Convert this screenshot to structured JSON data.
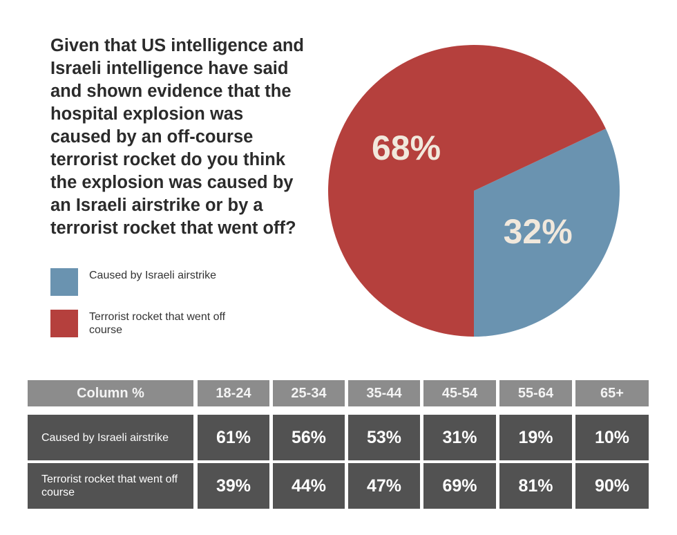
{
  "question": "Given that US intelligence and Israeli intelligence have said and shown evidence that the hospital explosion was caused by an off-course terrorist rocket do you think the explosion was caused by an Israeli airstrike or by a terrorist rocket that went off?",
  "colors": {
    "airstrike": "#6a93b0",
    "rocket": "#b5403d",
    "header_bg": "#8c8c8c",
    "cell_bg": "#525252",
    "pie_label": "#f1e8dc"
  },
  "legend": [
    {
      "label": "Caused by Israeli airstrike",
      "color": "#6a93b0"
    },
    {
      "label": "Terrorist rocket that went off course",
      "color": "#b5403d"
    }
  ],
  "chart_data": [
    {
      "type": "pie",
      "categories": [
        "Caused by Israeli airstrike",
        "Terrorist rocket that went off course"
      ],
      "values": [
        32,
        68
      ],
      "labels": [
        "32%",
        "68%"
      ],
      "colors": [
        "#6a93b0",
        "#b5403d"
      ]
    },
    {
      "type": "table",
      "header": [
        "Column %",
        "18-24",
        "25-34",
        "35-44",
        "45-54",
        "55-64",
        "65+"
      ],
      "rows": [
        {
          "label": "Caused by Israeli airstrike",
          "values": [
            "61%",
            "56%",
            "53%",
            "31%",
            "19%",
            "10%"
          ]
        },
        {
          "label": "Terrorist rocket that went off course",
          "values": [
            "39%",
            "44%",
            "47%",
            "69%",
            "81%",
            "90%"
          ]
        }
      ]
    }
  ]
}
